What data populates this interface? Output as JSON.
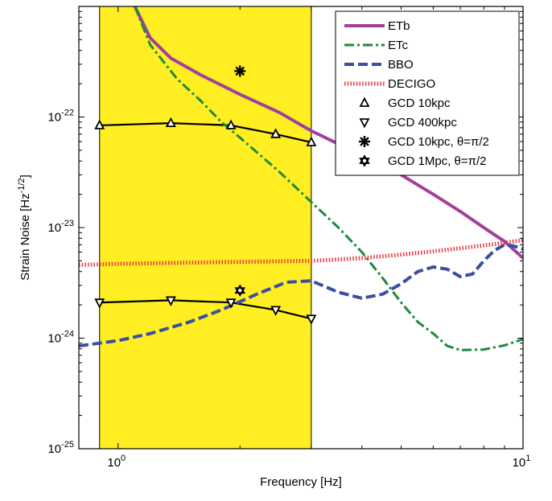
{
  "chart_data": {
    "type": "line",
    "title": "",
    "xlabel": "Frequency [Hz]",
    "ylabel": "Strain Noise [Hz^-1/2]",
    "xscale": "log",
    "yscale": "log",
    "xlim": [
      0.8,
      10
    ],
    "ylim": [
      1e-25,
      1e-21
    ],
    "x_ticks": [
      {
        "value": 1,
        "base": "10",
        "exp": "0"
      },
      {
        "value": 10,
        "base": "10",
        "exp": "1"
      }
    ],
    "y_ticks": [
      {
        "value": 1e-25,
        "base": "10",
        "exp": "-25"
      },
      {
        "value": 1e-24,
        "base": "10",
        "exp": "-24"
      },
      {
        "value": 1e-23,
        "base": "10",
        "exp": "-23"
      },
      {
        "value": 1e-22,
        "base": "10",
        "exp": "-22"
      }
    ],
    "grid": false,
    "legend_position": "top-right",
    "shaded_band": {
      "x": [
        0.9,
        3.0
      ],
      "color": "#ffee22"
    },
    "series": [
      {
        "name": "ETb",
        "color": "#a0409c",
        "dash": "solid",
        "width": 4,
        "points": [
          [
            1.1,
            1e-21
          ],
          [
            1.2,
            5.2e-22
          ],
          [
            1.35,
            3.4e-22
          ],
          [
            1.6,
            2.4e-22
          ],
          [
            2.0,
            1.6e-22
          ],
          [
            2.5,
            1.1e-22
          ],
          [
            3.0,
            7.5e-23
          ],
          [
            4.0,
            4.5e-23
          ],
          [
            5.0,
            3e-23
          ],
          [
            6.0,
            2e-23
          ],
          [
            7.0,
            1.4e-23
          ],
          [
            8.0,
            1e-23
          ],
          [
            9.0,
            7.5e-24
          ],
          [
            10.0,
            5.3e-24
          ]
        ]
      },
      {
        "name": "ETc",
        "color": "#1f8a3a",
        "dash": "dashdot",
        "width": 3,
        "points": [
          [
            1.1,
            1e-21
          ],
          [
            1.2,
            4.5e-22
          ],
          [
            1.4,
            2.2e-22
          ],
          [
            1.6,
            1.4e-22
          ],
          [
            1.8,
            9e-23
          ],
          [
            2.0,
            6.5e-23
          ],
          [
            2.5,
            3.2e-23
          ],
          [
            3.0,
            1.7e-23
          ],
          [
            3.5,
            1e-23
          ],
          [
            4.0,
            6e-24
          ],
          [
            4.5,
            3.5e-24
          ],
          [
            5.0,
            2.1e-24
          ],
          [
            5.5,
            1.4e-24
          ],
          [
            6.0,
            1.1e-24
          ],
          [
            6.5,
            8.5e-25
          ],
          [
            7.0,
            7.8e-25
          ],
          [
            8.0,
            7.9e-25
          ],
          [
            9.0,
            8.6e-25
          ],
          [
            10.0,
            9.8e-25
          ]
        ]
      },
      {
        "name": "BBO",
        "color": "#3a4fa3",
        "dash": "dashed",
        "width": 4,
        "points": [
          [
            0.8,
            8.5e-25
          ],
          [
            1.0,
            9.5e-25
          ],
          [
            1.2,
            1.1e-24
          ],
          [
            1.5,
            1.4e-24
          ],
          [
            1.8,
            1.8e-24
          ],
          [
            2.2,
            2.5e-24
          ],
          [
            2.6,
            3.2e-24
          ],
          [
            3.0,
            3.3e-24
          ],
          [
            3.5,
            2.6e-24
          ],
          [
            4.0,
            2.3e-24
          ],
          [
            4.5,
            2.5e-24
          ],
          [
            5.0,
            3.1e-24
          ],
          [
            5.5,
            4e-24
          ],
          [
            6.0,
            4.4e-24
          ],
          [
            6.5,
            4.2e-24
          ],
          [
            7.0,
            3.6e-24
          ],
          [
            7.5,
            3.8e-24
          ],
          [
            8.0,
            5e-24
          ],
          [
            8.5,
            6.2e-24
          ],
          [
            9.0,
            7e-24
          ],
          [
            9.5,
            6.8e-24
          ],
          [
            10.0,
            6.4e-24
          ]
        ]
      },
      {
        "name": "DECIGO",
        "color": "#e8383d",
        "dash": "dotted",
        "width": 5,
        "points": [
          [
            0.8,
            4.6e-24
          ],
          [
            1.0,
            4.7e-24
          ],
          [
            2.0,
            4.9e-24
          ],
          [
            3.0,
            5e-24
          ],
          [
            4.0,
            5.3e-24
          ],
          [
            5.0,
            5.7e-24
          ],
          [
            6.0,
            6.1e-24
          ],
          [
            7.0,
            6.5e-24
          ],
          [
            8.0,
            6.9e-24
          ],
          [
            9.0,
            7.3e-24
          ],
          [
            10.0,
            7.7e-24
          ]
        ]
      }
    ],
    "marker_series": [
      {
        "name": "GCD 10kpc",
        "marker": "triangle-up",
        "fit_line": true,
        "points": [
          [
            0.9,
            8.4e-23
          ],
          [
            1.35,
            8.8e-23
          ],
          [
            1.9,
            8.4e-23
          ],
          [
            2.45,
            7e-23
          ],
          [
            3.0,
            5.9e-23
          ]
        ]
      },
      {
        "name": "GCD 400kpc",
        "marker": "triangle-down",
        "fit_line": true,
        "points": [
          [
            0.9,
            2.1e-24
          ],
          [
            1.35,
            2.2e-24
          ],
          [
            1.9,
            2.1e-24
          ],
          [
            2.45,
            1.8e-24
          ],
          [
            3.0,
            1.5e-24
          ]
        ]
      },
      {
        "name": "GCD 10kpc, θ=π/2",
        "marker": "asterisk",
        "fit_line": false,
        "points": [
          [
            2.0,
            2.6e-22
          ]
        ]
      },
      {
        "name": "GCD 1Mpc, θ=π/2",
        "marker": "star",
        "fit_line": false,
        "points": [
          [
            2.0,
            2.7e-24
          ]
        ]
      }
    ]
  }
}
